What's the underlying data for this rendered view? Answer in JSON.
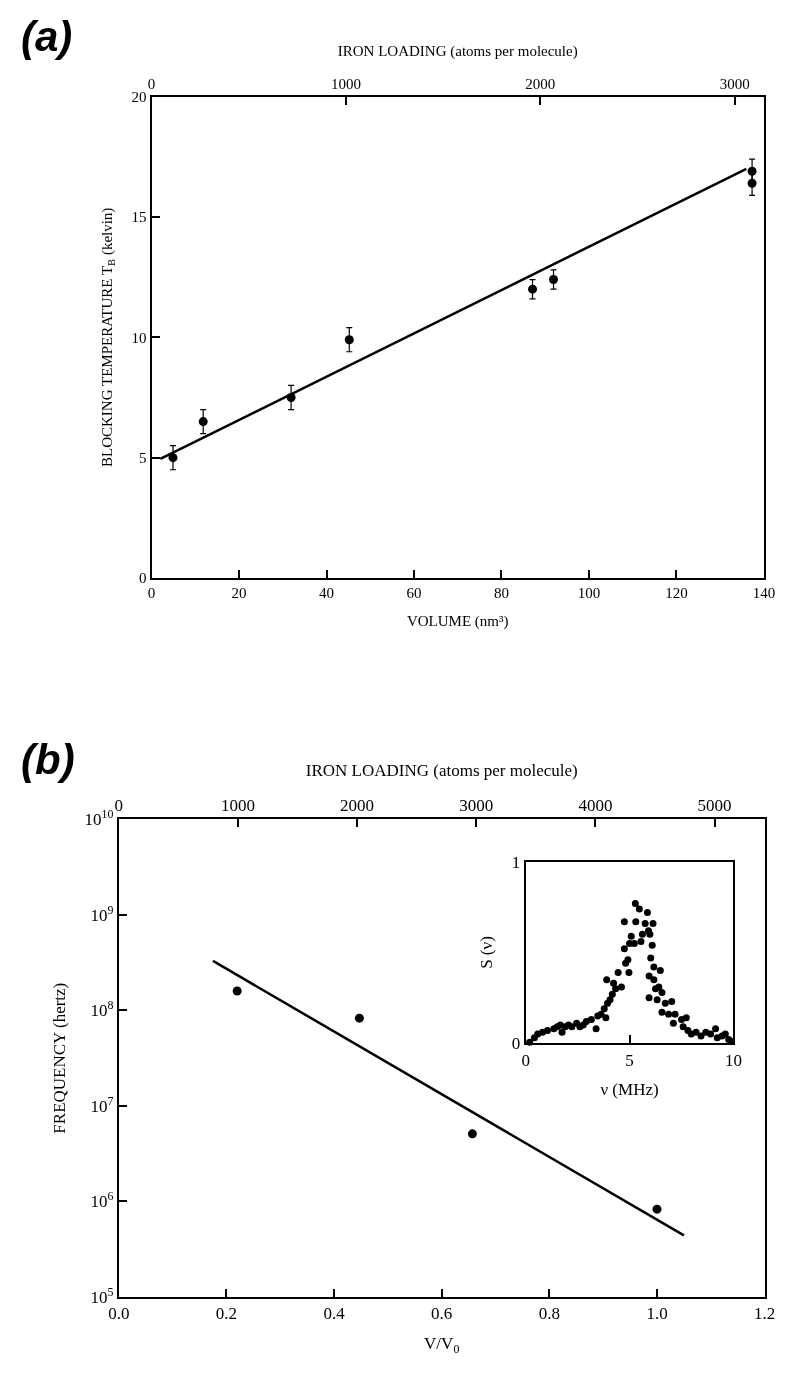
{
  "chart_data": [
    {
      "type": "scatter",
      "title": "(a)",
      "xlabel": "VOLUME (nm³)",
      "ylabel": "BLOCKING TEMPERATURE T$_{B}$ (kelvin)",
      "x2label": "IRON LOADING (atoms per molecule)",
      "xlim": [
        0,
        140
      ],
      "xticks": [
        0,
        20,
        40,
        60,
        80,
        100,
        120,
        140
      ],
      "ylim": [
        0,
        20
      ],
      "yticks": [
        0,
        5,
        10,
        15,
        20
      ],
      "x2lim": [
        0,
        3150
      ],
      "x2ticks": [
        0,
        1000,
        2000,
        3000
      ],
      "series": [
        {
          "color": "#000000",
          "marker": "circle",
          "x": [
            4.9,
            11.8,
            31.9,
            45.2,
            87.1,
            91.9,
            137.3,
            137.3
          ],
          "values": [
            5.0,
            6.5,
            7.5,
            9.9,
            12.0,
            12.4,
            16.9,
            16.4
          ],
          "errors": [
            0.5,
            0.5,
            0.5,
            0.5,
            0.4,
            0.4,
            0.5,
            0.5
          ]
        },
        {
          "type": "line",
          "color": "#000000",
          "marker": "none",
          "x": [
            2,
            136
          ],
          "values": [
            4.95,
            17.0
          ]
        }
      ]
    },
    {
      "type": "scatter",
      "title": "(b)",
      "xlabel": "V/V$_{0}$",
      "ylabel": "FREQUENCY (hertz)",
      "x2label": "IRON LOADING (atoms per molecule)",
      "log": "y",
      "xlim": [
        0,
        1.2
      ],
      "xticks": [
        {
          "value": 0,
          "label": "0.0"
        },
        0.2,
        0.4,
        0.6,
        0.8,
        {
          "value": 1,
          "label": "1.0"
        },
        1.2
      ],
      "ylim": [
        100000,
        10000000000
      ],
      "yticks": [
        {
          "value": 100000,
          "label": "10$^{5}$"
        },
        {
          "value": 1000000,
          "label": "10$^{6}$"
        },
        {
          "value": 10000000,
          "label": "10$^{7}$"
        },
        {
          "value": 100000000,
          "label": "10$^{8}$"
        },
        {
          "value": 1000000000,
          "label": "10$^{9}$"
        },
        {
          "value": 10000000000,
          "label": "10$^{10}$"
        }
      ],
      "x2lim": [
        0,
        5420
      ],
      "x2ticks": [
        0,
        1000,
        2000,
        3000,
        4000,
        5000
      ],
      "series": [
        {
          "color": "#000000",
          "marker": "circle",
          "x": [
            0.22,
            0.447,
            0.657,
            1.0
          ],
          "values": [
            160000000,
            83000000,
            5100000,
            830000
          ]
        },
        {
          "type": "line",
          "color": "#000000",
          "marker": "none",
          "x": [
            0.175,
            1.05
          ],
          "values": [
            330000000,
            440000
          ]
        }
      ]
    },
    {
      "type": "scatter",
      "xlabel": "ν (MHz)",
      "ylabel": "S (ν)",
      "xlim": [
        0,
        10
      ],
      "xticks": [
        0,
        5,
        10
      ],
      "ylim": [
        0,
        1
      ],
      "yticks": [
        0,
        1
      ],
      "series": [
        {
          "color": "#000000",
          "marker": "circle",
          "x": [
            0.19,
            0.42,
            0.58,
            0.81,
            1.05,
            1.36,
            1.52,
            1.67,
            1.75,
            1.9,
            2.06,
            2.22,
            2.45,
            2.61,
            2.77,
            2.92,
            3.16,
            3.39,
            3.47,
            3.63,
            3.78,
            3.86,
            3.94,
            4.06,
            4.17,
            4.33,
            3.9,
            4.23,
            4.61,
            4.45,
            4.81,
            4.92,
            4.97,
            4.75,
            5.0,
            5.08,
            5.23,
            5.55,
            4.75,
            5.3,
            5.47,
            5.28,
            5.86,
            5.75,
            6.13,
            5.62,
            5.91,
            5.98,
            6.09,
            6.02,
            6.17,
            6.48,
            5.94,
            6.17,
            6.41,
            6.25,
            5.94,
            6.56,
            6.33,
            6.72,
            7.03,
            6.56,
            6.88,
            7.19,
            7.11,
            7.5,
            7.73,
            7.58,
            7.81,
            7.97,
            8.2,
            8.44,
            8.67,
            8.9,
            9.14,
            9.22,
            9.45,
            9.61,
            9.77,
            9.88
          ],
          "values": [
            0.005,
            0.03,
            0.05,
            0.06,
            0.07,
            0.08,
            0.09,
            0.1,
            0.06,
            0.09,
            0.1,
            0.09,
            0.11,
            0.09,
            0.1,
            0.12,
            0.13,
            0.08,
            0.15,
            0.16,
            0.19,
            0.14,
            0.22,
            0.24,
            0.27,
            0.3,
            0.35,
            0.33,
            0.31,
            0.39,
            0.44,
            0.46,
            0.39,
            0.52,
            0.55,
            0.59,
            0.55,
            0.56,
            0.67,
            0.67,
            0.74,
            0.77,
            0.72,
            0.66,
            0.66,
            0.6,
            0.62,
            0.6,
            0.54,
            0.47,
            0.42,
            0.4,
            0.37,
            0.35,
            0.31,
            0.3,
            0.25,
            0.28,
            0.24,
            0.22,
            0.23,
            0.17,
            0.16,
            0.16,
            0.11,
            0.13,
            0.14,
            0.09,
            0.07,
            0.05,
            0.06,
            0.04,
            0.06,
            0.05,
            0.08,
            0.03,
            0.04,
            0.05,
            0.02,
            0.01
          ]
        }
      ]
    }
  ]
}
